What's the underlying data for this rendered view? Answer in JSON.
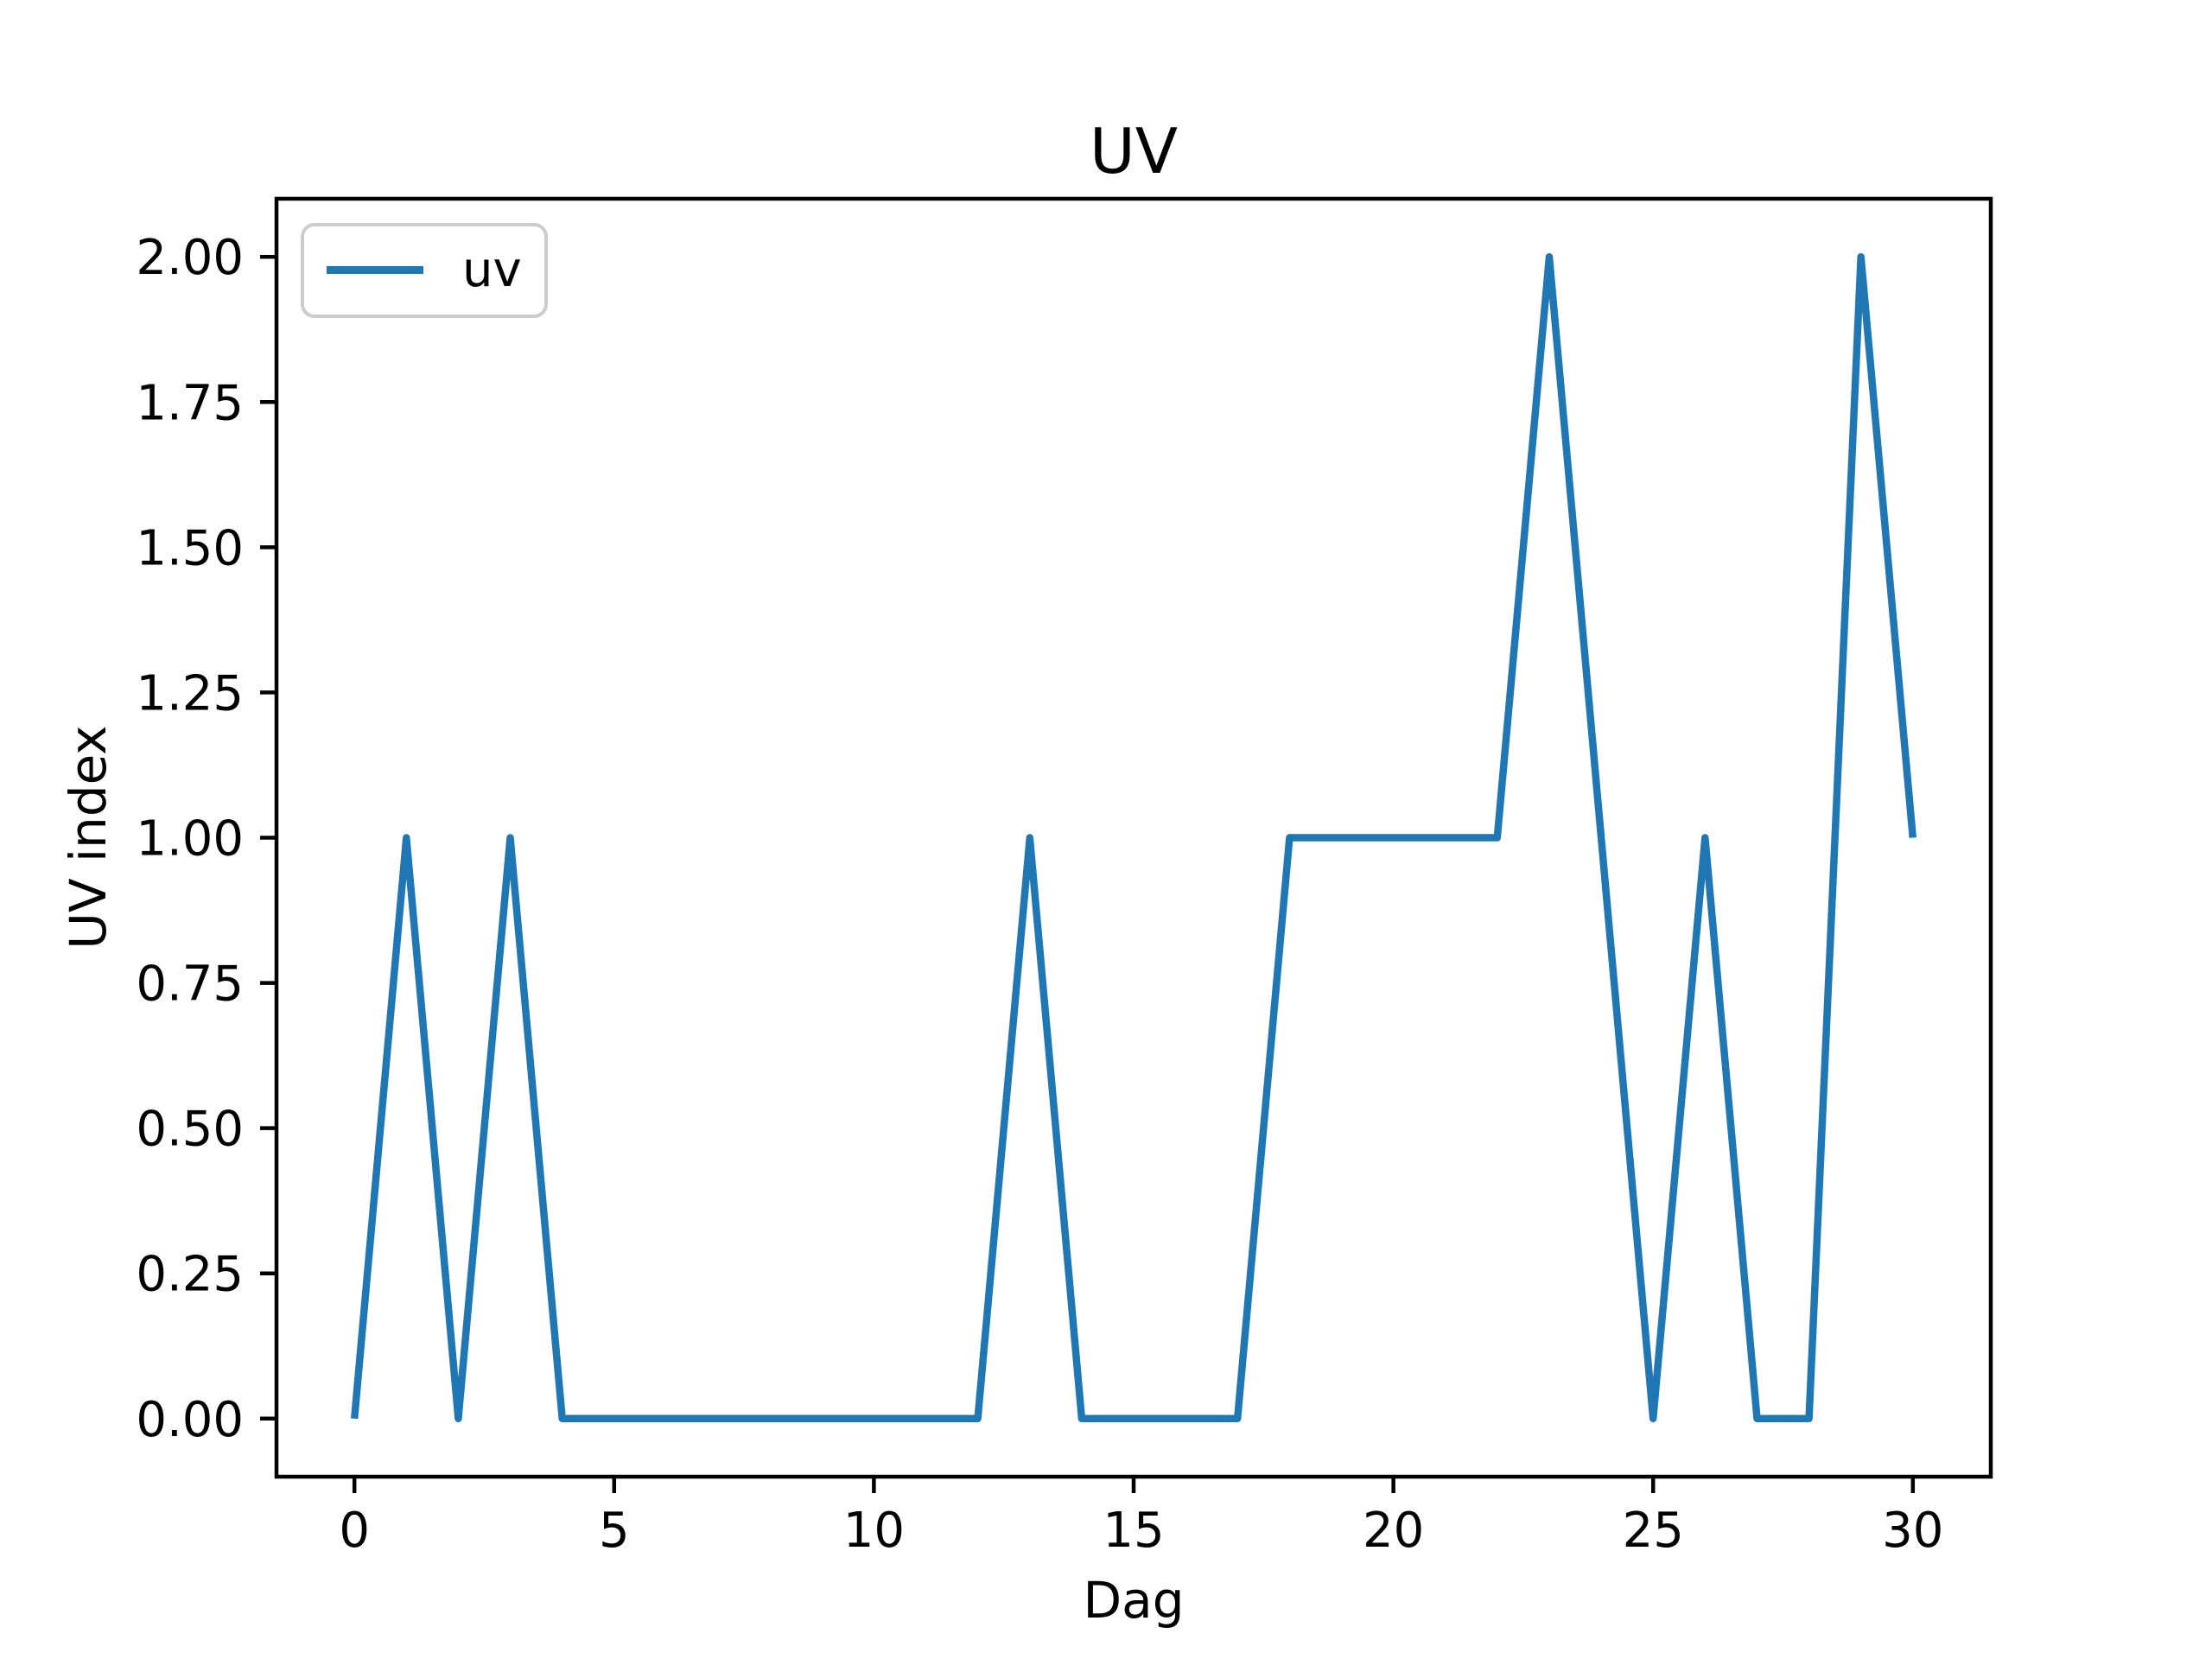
{
  "chart_data": {
    "type": "line",
    "title": "UV",
    "xlabel": "Dag",
    "ylabel": "UV index",
    "grid": false,
    "legend_position": "upper left",
    "xlim": [
      -1.5,
      31.5
    ],
    "ylim": [
      -0.1,
      2.1
    ],
    "x": [
      0,
      1,
      2,
      3,
      4,
      5,
      6,
      7,
      8,
      9,
      10,
      11,
      12,
      13,
      14,
      15,
      16,
      17,
      18,
      19,
      20,
      21,
      22,
      23,
      24,
      25,
      26,
      27,
      28,
      29,
      30
    ],
    "series": [
      {
        "name": "uv",
        "color": "#1f77b4",
        "values": [
          0,
          1,
          0,
          1,
          0,
          0,
          0,
          0,
          0,
          0,
          0,
          0,
          0,
          1,
          0,
          0,
          0,
          0,
          1,
          1,
          1,
          1,
          1,
          2,
          1,
          0,
          1,
          0,
          0,
          2,
          1
        ]
      }
    ],
    "xticks": {
      "values": [
        0,
        5,
        10,
        15,
        20,
        25,
        30
      ],
      "labels": [
        "0",
        "5",
        "10",
        "15",
        "20",
        "25",
        "30"
      ]
    },
    "yticks": {
      "values": [
        0,
        0.25,
        0.5,
        0.75,
        1,
        1.25,
        1.5,
        1.75,
        2
      ],
      "labels": [
        "0.00",
        "0.25",
        "0.50",
        "0.75",
        "1.00",
        "1.25",
        "1.50",
        "1.75",
        "2.00"
      ]
    },
    "colors": {
      "line": "#1f77b4",
      "axis": "#000000",
      "text": "#000000",
      "background": "#ffffff",
      "legend_border": "#cccccc"
    }
  }
}
